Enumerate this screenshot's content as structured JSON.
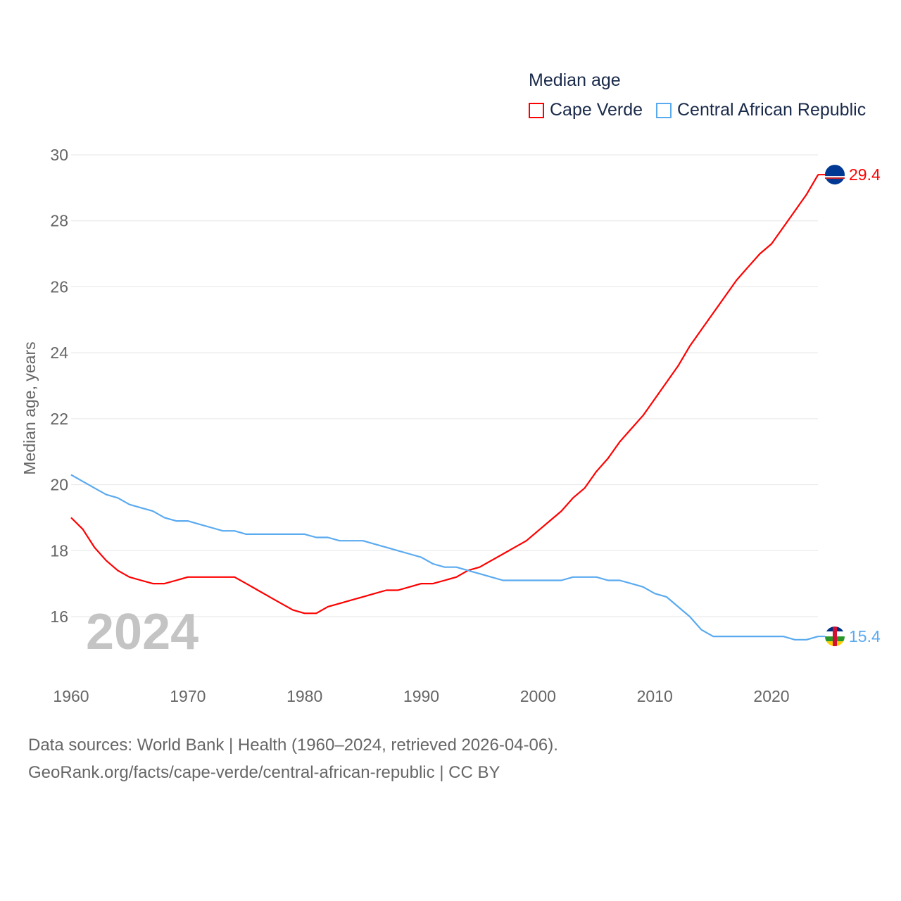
{
  "chart_data": {
    "type": "line",
    "title": "Median age",
    "xlabel": "",
    "ylabel": "Median age, years",
    "xlim": [
      1960,
      2024
    ],
    "ylim": [
      15,
      30
    ],
    "x_ticks": [
      "1960",
      "1970",
      "1980",
      "1990",
      "2000",
      "2010",
      "2020"
    ],
    "y_ticks": [
      "16",
      "18",
      "20",
      "22",
      "24",
      "26",
      "28",
      "30"
    ],
    "grid": true,
    "legend_position": "top-right",
    "year_label": "2024",
    "x": [
      1960,
      1961,
      1962,
      1963,
      1964,
      1965,
      1966,
      1967,
      1968,
      1969,
      1970,
      1971,
      1972,
      1973,
      1974,
      1975,
      1976,
      1977,
      1978,
      1979,
      1980,
      1981,
      1982,
      1983,
      1984,
      1985,
      1986,
      1987,
      1988,
      1989,
      1990,
      1991,
      1992,
      1993,
      1994,
      1995,
      1996,
      1997,
      1998,
      1999,
      2000,
      2001,
      2002,
      2003,
      2004,
      2005,
      2006,
      2007,
      2008,
      2009,
      2010,
      2011,
      2012,
      2013,
      2014,
      2015,
      2016,
      2017,
      2018,
      2019,
      2020,
      2021,
      2022,
      2023,
      2024
    ],
    "series": [
      {
        "name": "Cape Verde",
        "color": "#ff0000",
        "end_label": "29.4",
        "values": [
          19.0,
          18.65,
          18.1,
          17.7,
          17.4,
          17.2,
          17.1,
          17.0,
          17.0,
          17.1,
          17.2,
          17.2,
          17.2,
          17.2,
          17.2,
          17.0,
          16.8,
          16.6,
          16.4,
          16.2,
          16.1,
          16.1,
          16.3,
          16.4,
          16.5,
          16.6,
          16.7,
          16.8,
          16.8,
          16.9,
          17.0,
          17.0,
          17.1,
          17.2,
          17.4,
          17.5,
          17.7,
          17.9,
          18.1,
          18.3,
          18.6,
          18.9,
          19.2,
          19.6,
          19.9,
          20.4,
          20.8,
          21.3,
          21.7,
          22.1,
          22.6,
          23.1,
          23.6,
          24.2,
          24.7,
          25.2,
          25.7,
          26.2,
          26.6,
          27.0,
          27.3,
          27.8,
          28.3,
          28.8,
          29.4
        ]
      },
      {
        "name": "Central African Republic",
        "color": "#5aaaf0",
        "end_label": "15.4",
        "values": [
          20.3,
          20.1,
          19.9,
          19.7,
          19.6,
          19.4,
          19.3,
          19.2,
          19.0,
          18.9,
          18.9,
          18.8,
          18.7,
          18.6,
          18.6,
          18.5,
          18.5,
          18.5,
          18.5,
          18.5,
          18.5,
          18.4,
          18.4,
          18.3,
          18.3,
          18.3,
          18.2,
          18.1,
          18.0,
          17.9,
          17.8,
          17.6,
          17.5,
          17.5,
          17.4,
          17.3,
          17.2,
          17.1,
          17.1,
          17.1,
          17.1,
          17.1,
          17.1,
          17.2,
          17.2,
          17.2,
          17.1,
          17.1,
          17.0,
          16.9,
          16.7,
          16.6,
          16.3,
          16.0,
          15.6,
          15.4,
          15.4,
          15.4,
          15.4,
          15.4,
          15.4,
          15.4,
          15.3,
          15.3,
          15.4
        ]
      }
    ]
  },
  "footer": {
    "line1": "Data sources: World Bank | Health (1960–2024, retrieved 2026-04-06).",
    "line2": "GeoRank.org/facts/cape-verde/central-african-republic | CC BY"
  }
}
